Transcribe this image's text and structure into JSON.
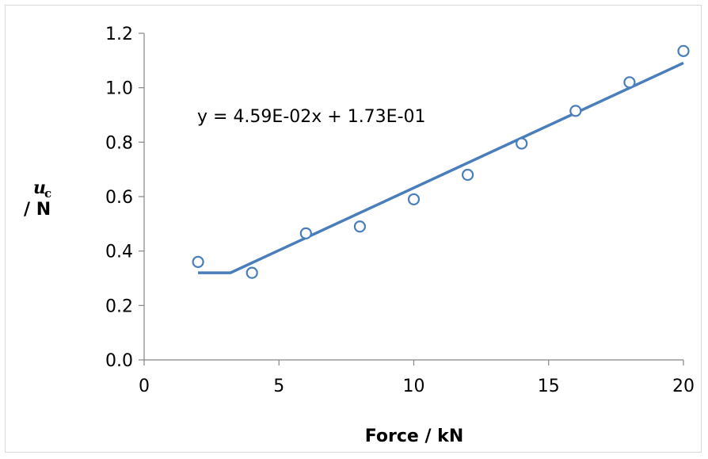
{
  "chart_data": {
    "type": "scatter",
    "title": "",
    "xlabel": "Force / kN",
    "ylabel_symbol": "u",
    "ylabel_subscript": "c",
    "ylabel_unit": "/ N",
    "xlim": [
      0,
      20
    ],
    "ylim": [
      0,
      1.2
    ],
    "x_ticks": [
      0,
      5,
      10,
      15,
      20
    ],
    "y_ticks": [
      0.0,
      0.2,
      0.4,
      0.6,
      0.8,
      1.0,
      1.2
    ],
    "x_tick_labels": [
      "0",
      "5",
      "10",
      "15",
      "20"
    ],
    "y_tick_labels": [
      "0.0",
      "0.2",
      "0.4",
      "0.6",
      "0.8",
      "1.0",
      "1.2"
    ],
    "grid": false,
    "series": [
      {
        "marker": "open-circle",
        "color": "#4a7ebb",
        "x": [
          2,
          4,
          6,
          8,
          10,
          12,
          14,
          16,
          18,
          20
        ],
        "y": [
          0.36,
          0.32,
          0.465,
          0.49,
          0.59,
          0.68,
          0.795,
          0.915,
          1.02,
          1.135
        ]
      }
    ],
    "fit_line": {
      "color": "#4a7ebb",
      "flat_segment": {
        "x": [
          2,
          3.2
        ],
        "y": 0.32
      },
      "linear_segment": {
        "x": [
          3.2,
          20
        ],
        "slope": 0.0459,
        "intercept": 0.173
      },
      "equation_label": "y = 4.59E-02x + 1.73E-01"
    }
  }
}
